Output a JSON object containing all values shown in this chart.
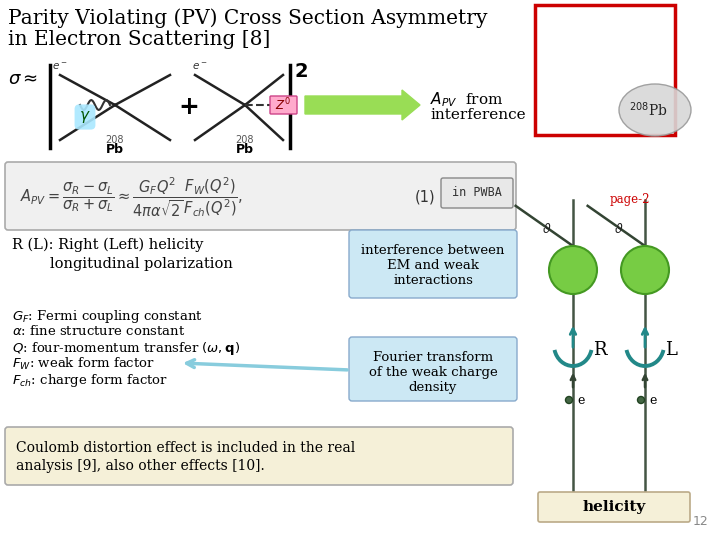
{
  "bg_color": "#ffffff",
  "title_line1": "Parity Violating (PV) Cross Section Asymmetry",
  "title_line2": "in Electron Scattering [8]",
  "title_fontsize": 14.5,
  "title_color": "#000000",
  "slide_number": "12",
  "page2_color": "#cc0000",
  "equation_box_color": "#f0f0f0",
  "equation_box_border": "#aaaaaa",
  "in_pwba_box_color": "#e8e8e8",
  "in_pwba_box_border": "#888888",
  "interference_box_color": "#cce8f4",
  "interference_box_border": "#88aacc",
  "fourier_box_color": "#cce8f4",
  "fourier_box_border": "#88aacc",
  "coulomb_box_color": "#f5f0d8",
  "coulomb_box_border": "#aaaaaa",
  "pb208_ellipse_color": "#d8d8d8",
  "red_rect_color": "#cc0000",
  "green_circle_color": "#77cc44",
  "teal_arc_color": "#228888",
  "arrow_green_color": "#99dd55",
  "arrow_blue_color": "#88ccdd",
  "helicity_box_color": "#f5f0d8",
  "helicity_box_border": "#bbaa88"
}
